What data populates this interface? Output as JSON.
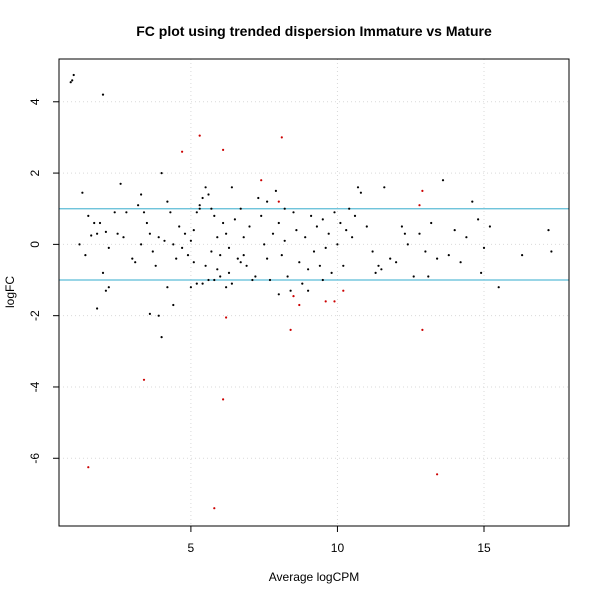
{
  "chart_data": {
    "type": "scatter",
    "title": "FC plot using trended dispersion Immature vs Mature",
    "xlabel": "Average logCPM",
    "ylabel": "logFC",
    "xlim": [
      0.5,
      17.9
    ],
    "ylim": [
      -7.9,
      5.2
    ],
    "x_ticks": [
      5,
      10,
      15
    ],
    "x_tick_labels": [
      "5",
      "10",
      "15"
    ],
    "y_ticks": [
      -6,
      -4,
      -2,
      0,
      2,
      4
    ],
    "y_tick_labels": [
      "-6",
      "-4",
      "-2",
      "0",
      "2",
      "4"
    ],
    "grid": true,
    "reference_lines": [
      1,
      -1
    ],
    "colors": {
      "points": "#000000",
      "significant_points": "#cc0000",
      "reference_lines": "#5bbcd6",
      "grid": "#d9d9d9",
      "frame": "#000000"
    },
    "series": [
      {
        "color": "#000000",
        "points": [
          [
            0.9,
            4.55
          ],
          [
            1.0,
            4.75
          ],
          [
            0.95,
            4.6
          ],
          [
            2.0,
            4.2
          ],
          [
            1.3,
            1.45
          ],
          [
            1.5,
            0.8
          ],
          [
            1.7,
            0.6
          ],
          [
            1.8,
            0.3
          ],
          [
            2.1,
            0.35
          ],
          [
            2.4,
            0.9
          ],
          [
            2.6,
            1.7
          ],
          [
            2.8,
            0.9
          ],
          [
            1.2,
            0.0
          ],
          [
            1.4,
            -0.3
          ],
          [
            1.6,
            0.25
          ],
          [
            1.9,
            0.6
          ],
          [
            2.2,
            -0.1
          ],
          [
            2.5,
            0.3
          ],
          [
            2.7,
            0.2
          ],
          [
            2.0,
            -0.8
          ],
          [
            2.1,
            -1.3
          ],
          [
            2.2,
            -1.2
          ],
          [
            1.8,
            -1.8
          ],
          [
            3.0,
            -0.4
          ],
          [
            3.2,
            1.1
          ],
          [
            3.3,
            1.4
          ],
          [
            3.4,
            0.9
          ],
          [
            3.5,
            0.6
          ],
          [
            3.6,
            0.3
          ],
          [
            3.7,
            -0.2
          ],
          [
            3.8,
            -0.6
          ],
          [
            3.9,
            0.2
          ],
          [
            4.0,
            2.0
          ],
          [
            4.1,
            0.1
          ],
          [
            4.2,
            1.2
          ],
          [
            4.3,
            0.9
          ],
          [
            4.4,
            0.0
          ],
          [
            4.5,
            -0.4
          ],
          [
            4.6,
            0.5
          ],
          [
            4.7,
            -0.1
          ],
          [
            3.6,
            -1.95
          ],
          [
            3.9,
            -2.0
          ],
          [
            4.0,
            -2.6
          ],
          [
            4.2,
            -1.2
          ],
          [
            4.4,
            -1.7
          ],
          [
            3.1,
            -0.5
          ],
          [
            3.3,
            0.0
          ],
          [
            4.8,
            0.3
          ],
          [
            4.9,
            -0.3
          ],
          [
            5.0,
            0.1
          ],
          [
            5.1,
            0.4
          ],
          [
            5.2,
            0.9
          ],
          [
            5.3,
            1.1
          ],
          [
            5.4,
            1.3
          ],
          [
            5.5,
            1.6
          ],
          [
            5.6,
            1.4
          ],
          [
            5.7,
            1.0
          ],
          [
            5.8,
            0.8
          ],
          [
            5.9,
            0.2
          ],
          [
            6.0,
            -0.3
          ],
          [
            6.1,
            0.6
          ],
          [
            6.2,
            0.3
          ],
          [
            6.3,
            -0.1
          ],
          [
            6.4,
            1.6
          ],
          [
            6.5,
            0.7
          ],
          [
            6.6,
            -0.4
          ],
          [
            6.7,
            1.0
          ],
          [
            6.8,
            0.2
          ],
          [
            6.9,
            -0.6
          ],
          [
            7.0,
            0.5
          ],
          [
            7.1,
            -1.0
          ],
          [
            5.0,
            -1.2
          ],
          [
            5.2,
            -1.1
          ],
          [
            5.4,
            -1.1
          ],
          [
            5.6,
            -1.0
          ],
          [
            5.8,
            -1.0
          ],
          [
            6.0,
            -0.9
          ],
          [
            6.2,
            -1.2
          ],
          [
            6.4,
            -1.1
          ],
          [
            5.1,
            -0.5
          ],
          [
            5.5,
            -0.6
          ],
          [
            5.9,
            -0.7
          ],
          [
            6.3,
            -0.8
          ],
          [
            6.7,
            -0.5
          ],
          [
            7.2,
            -0.9
          ],
          [
            7.3,
            1.3
          ],
          [
            7.4,
            0.8
          ],
          [
            7.5,
            0.0
          ],
          [
            7.6,
            -0.4
          ],
          [
            7.7,
            -1.0
          ],
          [
            7.8,
            0.3
          ],
          [
            7.9,
            1.5
          ],
          [
            8.0,
            0.6
          ],
          [
            8.1,
            -0.3
          ],
          [
            8.2,
            0.1
          ],
          [
            8.3,
            -0.9
          ],
          [
            8.4,
            -1.3
          ],
          [
            8.5,
            0.9
          ],
          [
            8.6,
            0.4
          ],
          [
            8.7,
            -0.5
          ],
          [
            8.8,
            -1.1
          ],
          [
            8.9,
            0.2
          ],
          [
            9.0,
            -0.7
          ],
          [
            9.1,
            0.8
          ],
          [
            9.2,
            -0.2
          ],
          [
            9.3,
            0.5
          ],
          [
            9.4,
            -0.6
          ],
          [
            9.5,
            0.7
          ],
          [
            9.6,
            -0.1
          ],
          [
            9.7,
            0.3
          ],
          [
            9.8,
            -0.8
          ],
          [
            9.9,
            0.9
          ],
          [
            10.0,
            0.0
          ],
          [
            10.1,
            0.6
          ],
          [
            10.2,
            -0.6
          ],
          [
            10.3,
            0.4
          ],
          [
            10.4,
            1.0
          ],
          [
            10.5,
            0.2
          ],
          [
            10.6,
            0.8
          ],
          [
            10.7,
            1.6
          ],
          [
            10.8,
            1.45
          ],
          [
            11.0,
            0.5
          ],
          [
            11.2,
            -0.2
          ],
          [
            11.4,
            -0.6
          ],
          [
            11.6,
            1.6
          ],
          [
            11.8,
            -0.4
          ],
          [
            12.0,
            -0.5
          ],
          [
            12.2,
            0.5
          ],
          [
            12.4,
            0.0
          ],
          [
            12.6,
            -0.9
          ],
          [
            12.8,
            0.3
          ],
          [
            13.0,
            -0.2
          ],
          [
            13.2,
            0.6
          ],
          [
            13.4,
            -0.4
          ],
          [
            13.6,
            1.8
          ],
          [
            13.8,
            -0.3
          ],
          [
            14.0,
            0.4
          ],
          [
            14.2,
            -0.5
          ],
          [
            14.4,
            0.2
          ],
          [
            14.6,
            1.2
          ],
          [
            14.8,
            0.7
          ],
          [
            15.0,
            -0.1
          ],
          [
            15.2,
            0.5
          ],
          [
            15.5,
            -1.2
          ],
          [
            16.3,
            -0.3
          ],
          [
            17.2,
            0.4
          ],
          [
            17.3,
            -0.2
          ],
          [
            12.3,
            0.3
          ],
          [
            11.3,
            -0.8
          ],
          [
            11.5,
            -0.7
          ],
          [
            13.1,
            -0.9
          ],
          [
            14.9,
            -0.8
          ],
          [
            5.3,
            1.0
          ],
          [
            5.7,
            -0.2
          ],
          [
            6.8,
            -0.3
          ],
          [
            7.6,
            1.2
          ],
          [
            8.2,
            1.0
          ],
          [
            9.0,
            -1.3
          ],
          [
            9.5,
            -1.0
          ],
          [
            8.0,
            -1.4
          ]
        ]
      },
      {
        "color": "#cc0000",
        "points": [
          [
            5.3,
            3.05
          ],
          [
            4.7,
            2.6
          ],
          [
            6.1,
            2.65
          ],
          [
            7.4,
            1.8
          ],
          [
            8.0,
            1.2
          ],
          [
            8.1,
            3.0
          ],
          [
            12.8,
            1.1
          ],
          [
            12.9,
            1.5
          ],
          [
            6.2,
            -2.05
          ],
          [
            6.1,
            -4.35
          ],
          [
            3.4,
            -3.8
          ],
          [
            1.5,
            -6.25
          ],
          [
            5.8,
            -7.4
          ],
          [
            13.4,
            -6.45
          ],
          [
            8.4,
            -2.4
          ],
          [
            8.7,
            -1.7
          ],
          [
            9.6,
            -1.6
          ],
          [
            9.9,
            -1.6
          ],
          [
            10.2,
            -1.3
          ],
          [
            12.9,
            -2.4
          ],
          [
            8.5,
            -1.45
          ]
        ]
      }
    ]
  }
}
